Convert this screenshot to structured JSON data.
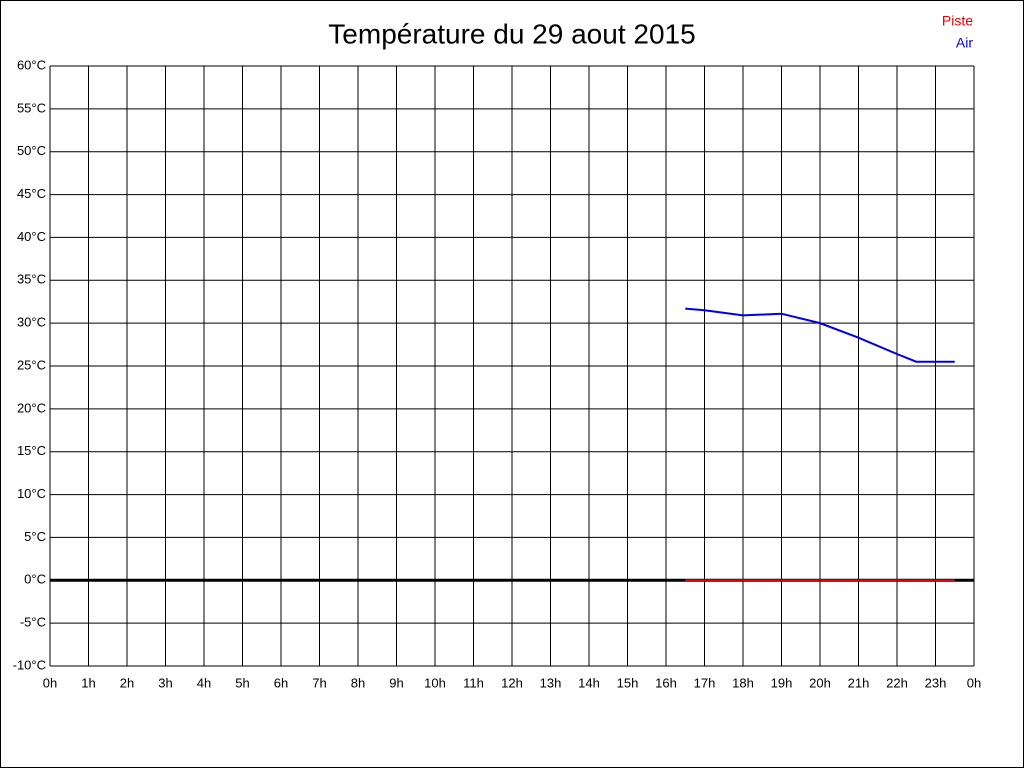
{
  "chart_data": {
    "type": "line",
    "title": "Température du 29 aout 2015",
    "xlim": [
      0,
      24
    ],
    "xticks": [
      {
        "value": 0,
        "label": "0h"
      },
      {
        "value": 1,
        "label": "1h"
      },
      {
        "value": 2,
        "label": "2h"
      },
      {
        "value": 3,
        "label": "3h"
      },
      {
        "value": 4,
        "label": "4h"
      },
      {
        "value": 5,
        "label": "5h"
      },
      {
        "value": 6,
        "label": "6h"
      },
      {
        "value": 7,
        "label": "7h"
      },
      {
        "value": 8,
        "label": "8h"
      },
      {
        "value": 9,
        "label": "9h"
      },
      {
        "value": 10,
        "label": "10h"
      },
      {
        "value": 11,
        "label": "11h"
      },
      {
        "value": 12,
        "label": "12h"
      },
      {
        "value": 13,
        "label": "13h"
      },
      {
        "value": 14,
        "label": "14h"
      },
      {
        "value": 15,
        "label": "15h"
      },
      {
        "value": 16,
        "label": "16h"
      },
      {
        "value": 17,
        "label": "17h"
      },
      {
        "value": 18,
        "label": "18h"
      },
      {
        "value": 19,
        "label": "19h"
      },
      {
        "value": 20,
        "label": "20h"
      },
      {
        "value": 21,
        "label": "21h"
      },
      {
        "value": 22,
        "label": "22h"
      },
      {
        "value": 23,
        "label": "23h"
      },
      {
        "value": 24,
        "label": "0h"
      }
    ],
    "ylim": [
      -10,
      60
    ],
    "yticks": [
      {
        "value": -10,
        "label": "-10°C"
      },
      {
        "value": -5,
        "label": "-5°C"
      },
      {
        "value": 0,
        "label": "0°C"
      },
      {
        "value": 5,
        "label": "5°C"
      },
      {
        "value": 10,
        "label": "10°C"
      },
      {
        "value": 15,
        "label": "15°C"
      },
      {
        "value": 20,
        "label": "20°C"
      },
      {
        "value": 25,
        "label": "25°C"
      },
      {
        "value": 30,
        "label": "30°C"
      },
      {
        "value": 35,
        "label": "35°C"
      },
      {
        "value": 40,
        "label": "40°C"
      },
      {
        "value": 45,
        "label": "45°C"
      },
      {
        "value": 50,
        "label": "50°C"
      },
      {
        "value": 55,
        "label": "55°C"
      },
      {
        "value": 60,
        "label": "60°C"
      }
    ],
    "grid": true,
    "legend": "top-right",
    "series": [
      {
        "name": "Piste",
        "color": "#e00000",
        "x": [
          16.5,
          17,
          18,
          19,
          20,
          21,
          22,
          22.5,
          23.5
        ],
        "values": [
          0,
          0,
          0,
          0,
          0,
          0,
          0,
          0,
          0
        ]
      },
      {
        "name": "Air",
        "color": "#0000e0",
        "x": [
          16.5,
          17,
          18,
          19,
          20,
          21,
          22,
          22.5,
          23.5
        ],
        "values": [
          31.7,
          31.5,
          30.9,
          31.1,
          30.0,
          28.3,
          26.4,
          25.5,
          25.5
        ]
      }
    ]
  }
}
